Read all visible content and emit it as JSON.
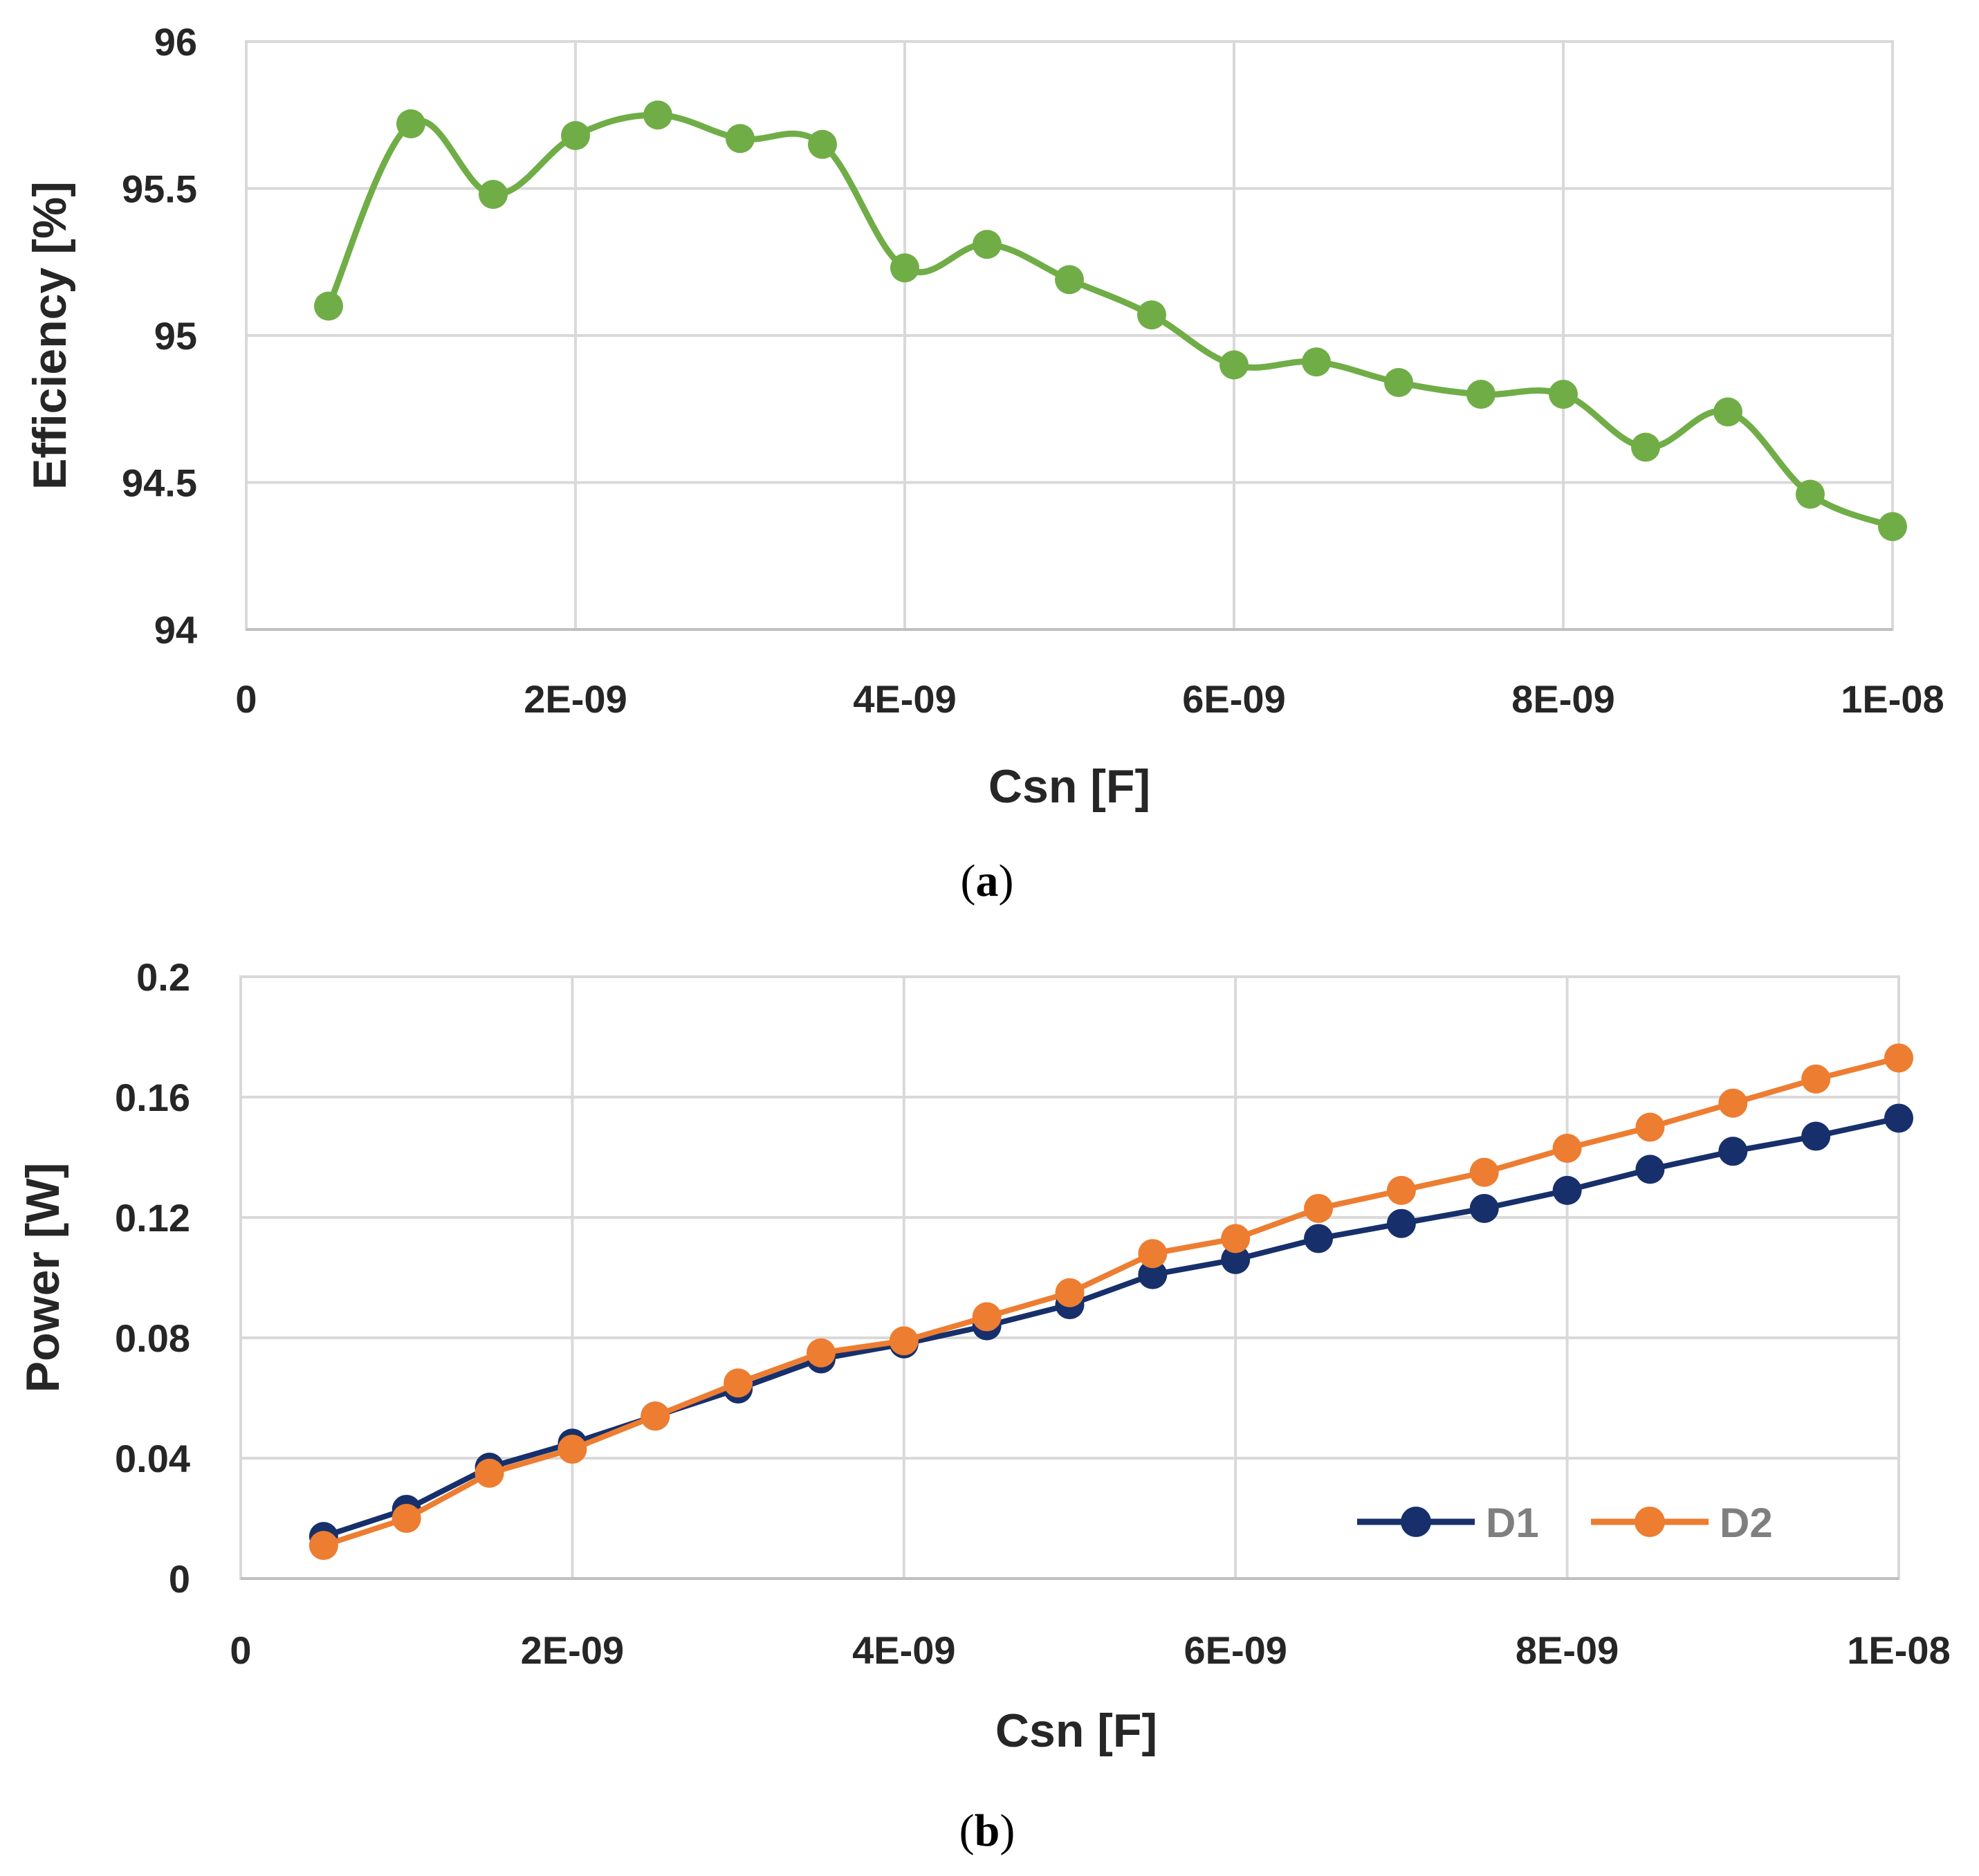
{
  "chart_data": [
    {
      "type": "line",
      "caption_open": "(",
      "caption_letter": "a",
      "caption_close": ")",
      "title": "",
      "xlabel": "Csn [F]",
      "ylabel": "Efficiency [%]",
      "xlim": [
        0,
        1e-08
      ],
      "ylim": [
        94,
        96
      ],
      "x_ticks": [
        0,
        2e-09,
        4e-09,
        6e-09,
        8e-09,
        1e-08
      ],
      "x_tick_labels": [
        "0",
        "2E-09",
        "4E-09",
        "6E-09",
        "8E-09",
        "1E-08"
      ],
      "y_ticks": [
        94,
        94.5,
        95,
        95.5,
        96
      ],
      "y_tick_labels": [
        "94",
        "94.5",
        "95",
        "95.5",
        "96"
      ],
      "grid": true,
      "smooth": true,
      "x": [
        5e-10,
        1e-09,
        1.5e-09,
        2e-09,
        2.5e-09,
        3e-09,
        3.5e-09,
        4e-09,
        4.5e-09,
        5e-09,
        5.5e-09,
        6e-09,
        6.5e-09,
        7e-09,
        7.5e-09,
        8e-09,
        8.5e-09,
        9e-09,
        9.5e-09,
        1e-08
      ],
      "series": [
        {
          "name": "Efficiency",
          "color": "#70AD47",
          "values": [
            95.1,
            95.72,
            95.48,
            95.68,
            95.75,
            95.67,
            95.65,
            95.23,
            95.31,
            95.19,
            95.07,
            94.9,
            94.91,
            94.84,
            94.8,
            94.8,
            94.62,
            94.74,
            94.46,
            94.35
          ]
        }
      ]
    },
    {
      "type": "line",
      "caption_open": "(",
      "caption_letter": "b",
      "caption_close": ")",
      "title": "",
      "xlabel": "Csn [F]",
      "ylabel": "Power [W]",
      "xlim": [
        0,
        1e-08
      ],
      "ylim": [
        0,
        0.2
      ],
      "x_ticks": [
        0,
        2e-09,
        4e-09,
        6e-09,
        8e-09,
        1e-08
      ],
      "x_tick_labels": [
        "0",
        "2E-09",
        "4E-09",
        "6E-09",
        "8E-09",
        "1E-08"
      ],
      "y_ticks": [
        0,
        0.04,
        0.08,
        0.12,
        0.16,
        0.2
      ],
      "y_tick_labels": [
        "0",
        "0.04",
        "0.08",
        "0.12",
        "0.16",
        "0.2"
      ],
      "grid": true,
      "smooth": false,
      "legend_position": "bottom-right",
      "x": [
        5e-10,
        1e-09,
        1.5e-09,
        2e-09,
        2.5e-09,
        3e-09,
        3.5e-09,
        4e-09,
        4.5e-09,
        5e-09,
        5.5e-09,
        6e-09,
        6.5e-09,
        7e-09,
        7.5e-09,
        8e-09,
        8.5e-09,
        9e-09,
        9.5e-09,
        1e-08
      ],
      "series": [
        {
          "name": "D1",
          "color": "#17306B",
          "values": [
            0.014,
            0.023,
            0.037,
            0.045,
            0.054,
            0.063,
            0.073,
            0.078,
            0.084,
            0.091,
            0.101,
            0.106,
            0.113,
            0.118,
            0.123,
            0.129,
            0.136,
            0.142,
            0.147,
            0.153
          ]
        },
        {
          "name": "D2",
          "color": "#ED7D31",
          "values": [
            0.011,
            0.02,
            0.035,
            0.043,
            0.054,
            0.065,
            0.075,
            0.079,
            0.087,
            0.095,
            0.108,
            0.113,
            0.123,
            0.129,
            0.135,
            0.143,
            0.15,
            0.158,
            0.166,
            0.173
          ]
        }
      ]
    }
  ]
}
